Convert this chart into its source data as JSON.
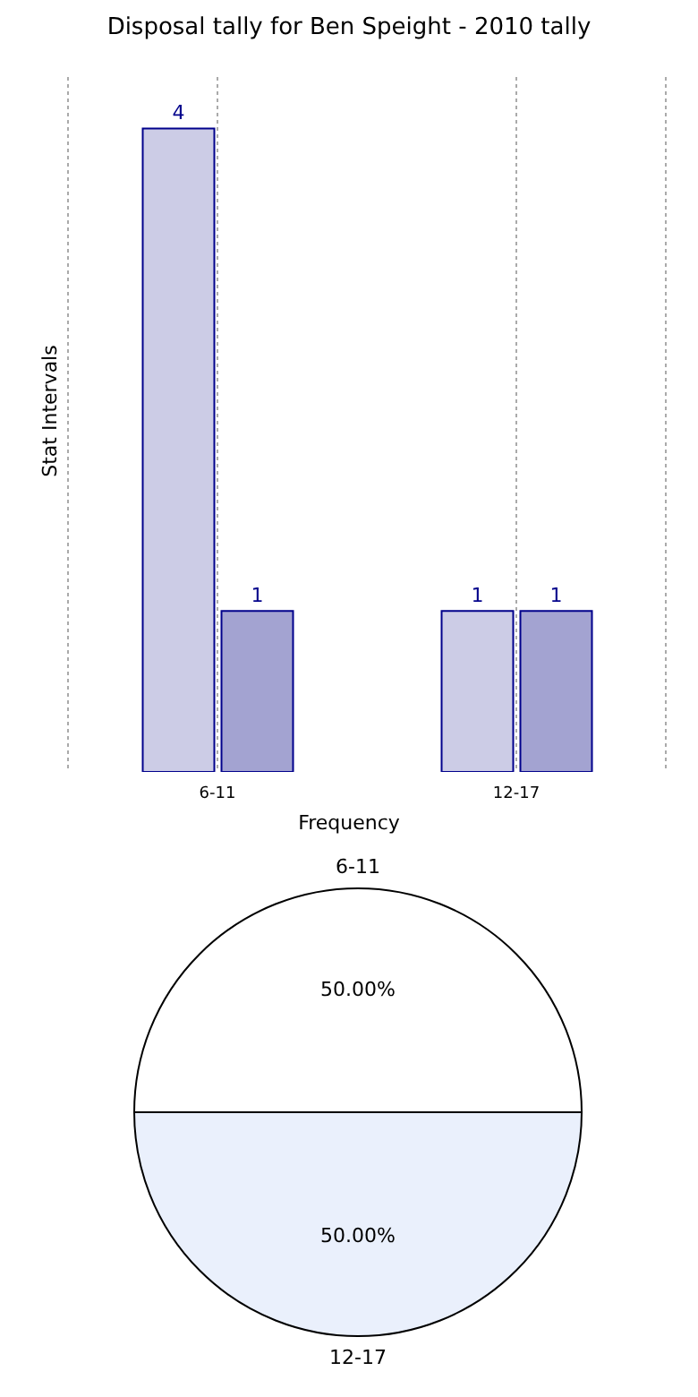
{
  "chart_data": [
    {
      "type": "bar",
      "title": "Disposal tally for Ben Speight - 2010 tally",
      "xlabel": "Frequency",
      "ylabel": "Stat Intervals",
      "categories": [
        "6-11",
        "12-17"
      ],
      "series": [
        {
          "color": "#cccce6",
          "values": [
            4,
            1
          ]
        },
        {
          "color": "#a3a3d1",
          "values": [
            1,
            1
          ]
        }
      ],
      "data_labels": true,
      "tick_labels": "x",
      "grid": "x",
      "legend": false
    },
    {
      "type": "pie",
      "categories": [
        "6-11",
        "12-17"
      ],
      "values": [
        50,
        50
      ],
      "colors": [
        "#ffffff",
        "#eaf0fc"
      ],
      "value_labels": [
        "50.00%",
        "50.00%"
      ],
      "legend": false
    }
  ]
}
